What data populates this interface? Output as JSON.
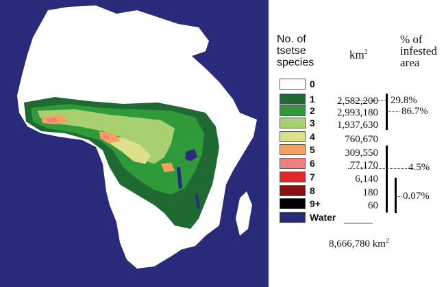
{
  "legend": {
    "col_species": [
      "No. of",
      "tsetse",
      "species"
    ],
    "col_area": "km",
    "col_area_sup": "2",
    "col_pct": [
      "% of",
      "infested",
      "area"
    ],
    "rows": [
      {
        "label": "0",
        "color": "#ffffff",
        "area": ""
      },
      {
        "label": "1",
        "color": "#1e6a32",
        "area": "2,582,200"
      },
      {
        "label": "2",
        "color": "#2e9a3a",
        "area": "2,993,180"
      },
      {
        "label": "3",
        "color": "#a8d070",
        "area": "1,937,630"
      },
      {
        "label": "4",
        "color": "#dde08a",
        "area": "760,670"
      },
      {
        "label": "5",
        "color": "#f4a060",
        "area": "309,550"
      },
      {
        "label": "6",
        "color": "#f08080",
        "area": "77,170"
      },
      {
        "label": "7",
        "color": "#e02828",
        "area": "6,140"
      },
      {
        "label": "8",
        "color": "#8a1010",
        "area": "180"
      },
      {
        "label": "9+",
        "color": "#000000",
        "area": "60"
      },
      {
        "label": "Water",
        "color": "#2a2a7a",
        "area": ""
      }
    ],
    "pct_groups": [
      "29.8%",
      "86.7%",
      "4.5%",
      "0.07%"
    ],
    "total": "8,666,780 km",
    "total_sup": "2"
  },
  "map": {
    "ocean_color": "#2a2a7a",
    "land_color": "#ffffff"
  }
}
